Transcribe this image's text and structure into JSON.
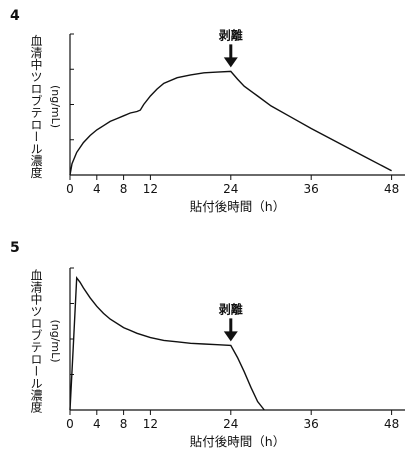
{
  "chart_data": [
    {
      "panel_label": "4",
      "type": "line",
      "title": "",
      "xlabel": "貼付後時間（h）",
      "ylabel_main": "血清中ツロブテロール濃度",
      "ylabel_unit": "(ng/mL)",
      "x_ticks": [
        0,
        4,
        8,
        12,
        24,
        36,
        48
      ],
      "xlim": [
        0,
        50
      ],
      "ylim": [
        0,
        1
      ],
      "y_tick_labels_shown": false,
      "annotation": {
        "text": "剥離",
        "x": 24
      },
      "series": [
        {
          "points": [
            [
              0,
              0
            ],
            [
              0.3,
              0.08
            ],
            [
              1,
              0.16
            ],
            [
              2,
              0.23
            ],
            [
              3,
              0.28
            ],
            [
              4,
              0.32
            ],
            [
              5,
              0.35
            ],
            [
              6,
              0.38
            ],
            [
              7,
              0.4
            ],
            [
              8,
              0.42
            ],
            [
              9,
              0.44
            ],
            [
              10,
              0.45
            ],
            [
              10.5,
              0.46
            ],
            [
              11,
              0.5
            ],
            [
              12,
              0.56
            ],
            [
              13,
              0.61
            ],
            [
              14,
              0.65
            ],
            [
              16,
              0.69
            ],
            [
              18,
              0.71
            ],
            [
              20,
              0.725
            ],
            [
              22,
              0.73
            ],
            [
              24,
              0.735
            ],
            [
              25,
              0.68
            ],
            [
              26,
              0.63
            ],
            [
              28,
              0.56
            ],
            [
              30,
              0.49
            ],
            [
              33,
              0.41
            ],
            [
              36,
              0.33
            ],
            [
              40,
              0.23
            ],
            [
              44,
              0.13
            ],
            [
              48,
              0.03
            ]
          ]
        }
      ]
    },
    {
      "panel_label": "5",
      "type": "line",
      "title": "",
      "xlabel": "貼付後時間（h）",
      "ylabel_main": "血清中ツロブテロール濃度",
      "ylabel_unit": "(ng/mL)",
      "x_ticks": [
        0,
        4,
        8,
        12,
        24,
        36,
        48
      ],
      "xlim": [
        0,
        50
      ],
      "ylim": [
        0,
        1
      ],
      "y_tick_labels_shown": false,
      "annotation": {
        "text": "剥離",
        "x": 24
      },
      "series": [
        {
          "points": [
            [
              0,
              0
            ],
            [
              0.5,
              0.45
            ],
            [
              1,
              0.93
            ],
            [
              1.5,
              0.9
            ],
            [
              2,
              0.86
            ],
            [
              3,
              0.79
            ],
            [
              4,
              0.73
            ],
            [
              5,
              0.68
            ],
            [
              6,
              0.64
            ],
            [
              8,
              0.58
            ],
            [
              10,
              0.54
            ],
            [
              12,
              0.51
            ],
            [
              14,
              0.49
            ],
            [
              16,
              0.48
            ],
            [
              18,
              0.47
            ],
            [
              20,
              0.465
            ],
            [
              22,
              0.46
            ],
            [
              24,
              0.455
            ],
            [
              25,
              0.37
            ],
            [
              26,
              0.27
            ],
            [
              27,
              0.16
            ],
            [
              28,
              0.06
            ],
            [
              29,
              0.0
            ]
          ]
        }
      ]
    }
  ]
}
